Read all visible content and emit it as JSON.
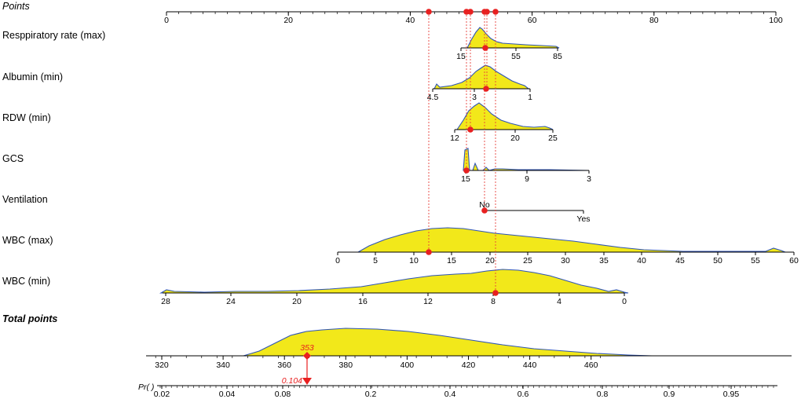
{
  "chart_data": {
    "type": "nomogram",
    "points_axis": {
      "label": "Points",
      "range": [
        0,
        100
      ],
      "ticks": [
        "0",
        "20",
        "40",
        "60",
        "80",
        "100"
      ]
    },
    "variables": [
      {
        "label": "Resppiratory rate (max)",
        "ticks": [
          "15",
          "55",
          "85"
        ],
        "selected": "Respiratory rate (max)",
        "points": 53
      },
      {
        "label": "Albumin (min)",
        "ticks": [
          "4.5",
          "3",
          "1"
        ],
        "points": 53
      },
      {
        "label": "RDW (min)",
        "ticks": [
          "12",
          "20",
          "25"
        ],
        "points": 49
      },
      {
        "label": "GCS",
        "ticks": [
          "15",
          "9",
          "3"
        ],
        "points": 49
      },
      {
        "label": "Ventilation",
        "ticks": [
          "No",
          "Yes"
        ],
        "selected": "No",
        "points": 53
      },
      {
        "label": "WBC (max)",
        "ticks": [
          "0",
          "5",
          "10",
          "15",
          "20",
          "25",
          "30",
          "35",
          "40",
          "45",
          "50",
          "55",
          "60"
        ],
        "selected_value": 12,
        "points": 43
      },
      {
        "label": "WBC (min)",
        "ticks": [
          "28",
          "24",
          "20",
          "16",
          "12",
          "8",
          "4",
          "0"
        ],
        "selected_value": 7.8,
        "points": 54
      }
    ],
    "total_points": {
      "label": "Total points",
      "ticks": [
        "320",
        "340",
        "360",
        "380",
        "400",
        "420",
        "440",
        "460"
      ],
      "range": [
        318,
        463
      ],
      "value": "353"
    },
    "probability": {
      "label": "Pr( )",
      "ticks": [
        "0.02",
        "0.04",
        "0.08",
        "0.2",
        "0.4",
        "0.6",
        "0.8",
        "0.9",
        "0.95"
      ],
      "value": "0.104"
    },
    "colors": {
      "density_fill": "#f2e81a",
      "density_line": "#2f55b5",
      "marker": "#e82020",
      "guide": "#e8413a"
    }
  }
}
